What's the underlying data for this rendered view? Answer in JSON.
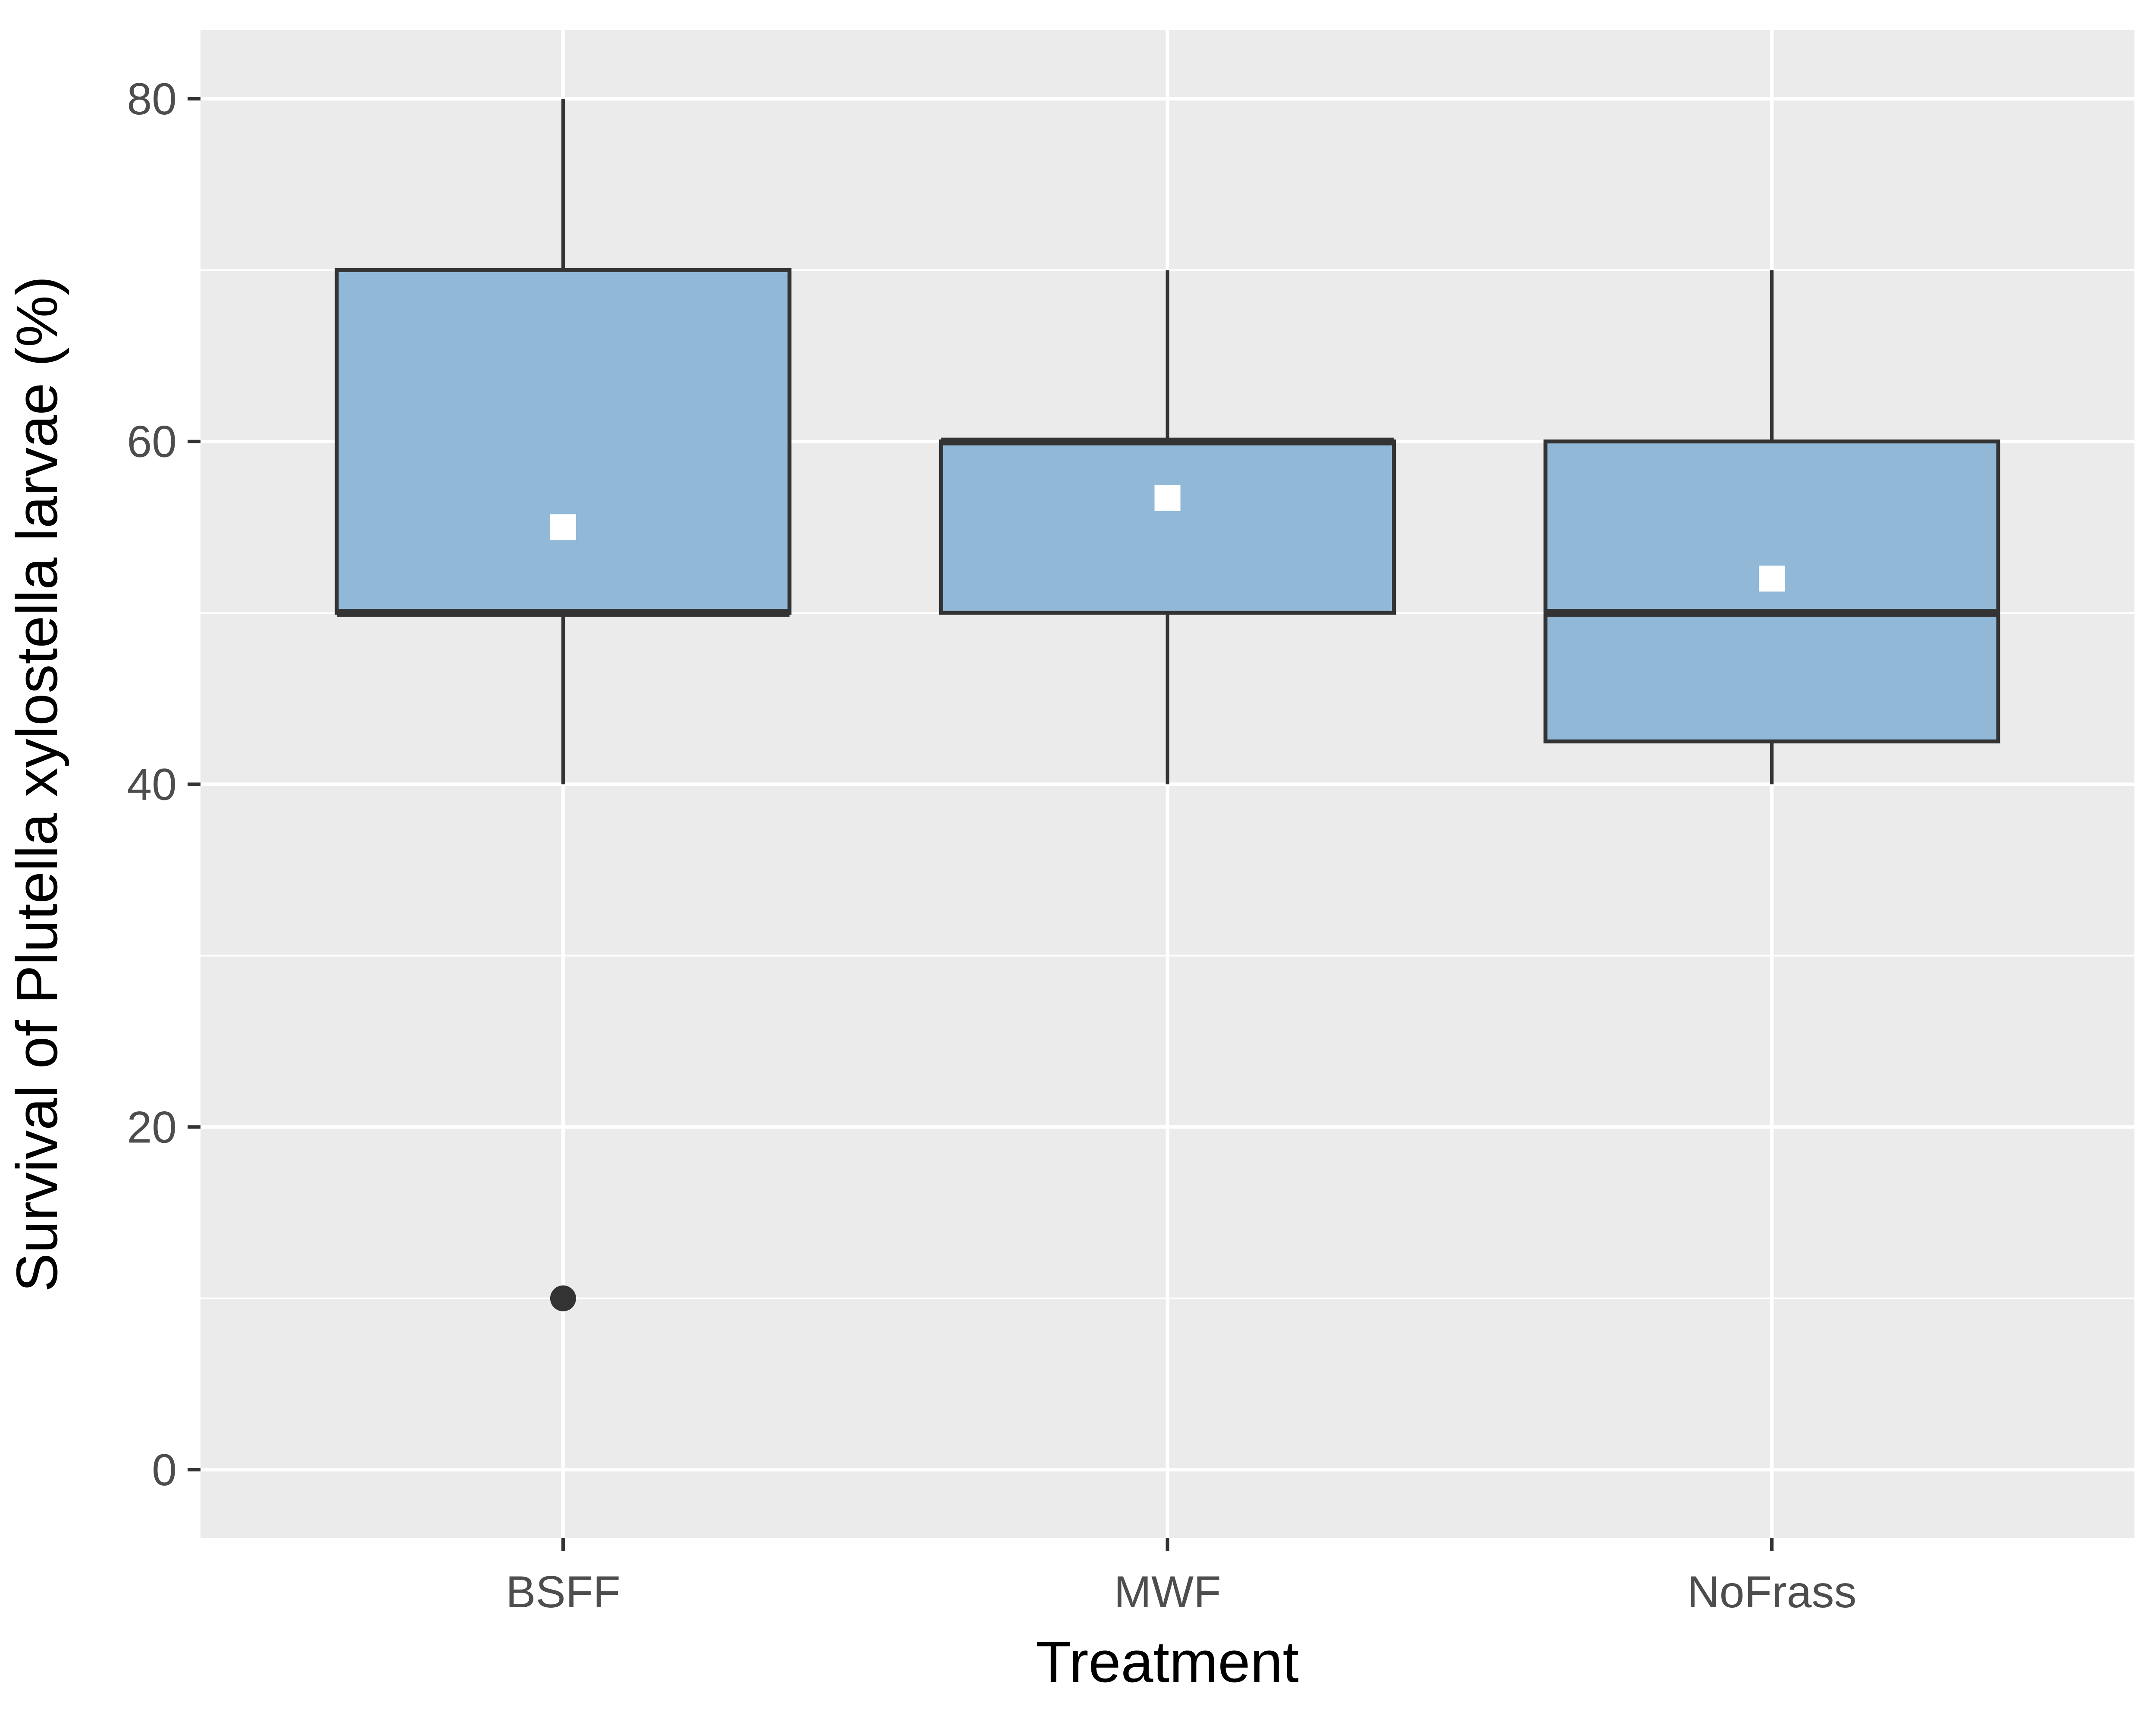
{
  "colors": {
    "panel_background": "#EBEBEB",
    "grid": "#FFFFFF",
    "box_fill": "#91B8D6",
    "box_outline": "#333333",
    "mean_marker": "#FFFFFF",
    "outlier": "#333333",
    "tick_text": "#4D4D4D",
    "title_text": "#000000"
  },
  "chart_data": {
    "type": "boxplot",
    "xlabel": "Treatment",
    "ylabel": "Survival of Plutella xylostella larvae (%)",
    "categories": [
      "BSFF",
      "MWF",
      "NoFrass"
    ],
    "ylim": [
      -4,
      84
    ],
    "y_ticks": [
      0,
      20,
      40,
      60,
      80
    ],
    "grid": true,
    "legend": "none",
    "boxes": [
      {
        "category": "BSFF",
        "whisker_low": 40,
        "q1": 50,
        "median": 50,
        "q3": 70,
        "whisker_high": 80,
        "mean": 55,
        "outliers": [
          10
        ]
      },
      {
        "category": "MWF",
        "whisker_low": 40,
        "q1": 50,
        "median": 60,
        "q3": 60,
        "whisker_high": 70,
        "mean": 56.7,
        "outliers": []
      },
      {
        "category": "NoFrass",
        "whisker_low": 40,
        "q1": 42.5,
        "median": 50,
        "q3": 60,
        "whisker_high": 70,
        "mean": 52,
        "outliers": []
      }
    ]
  }
}
